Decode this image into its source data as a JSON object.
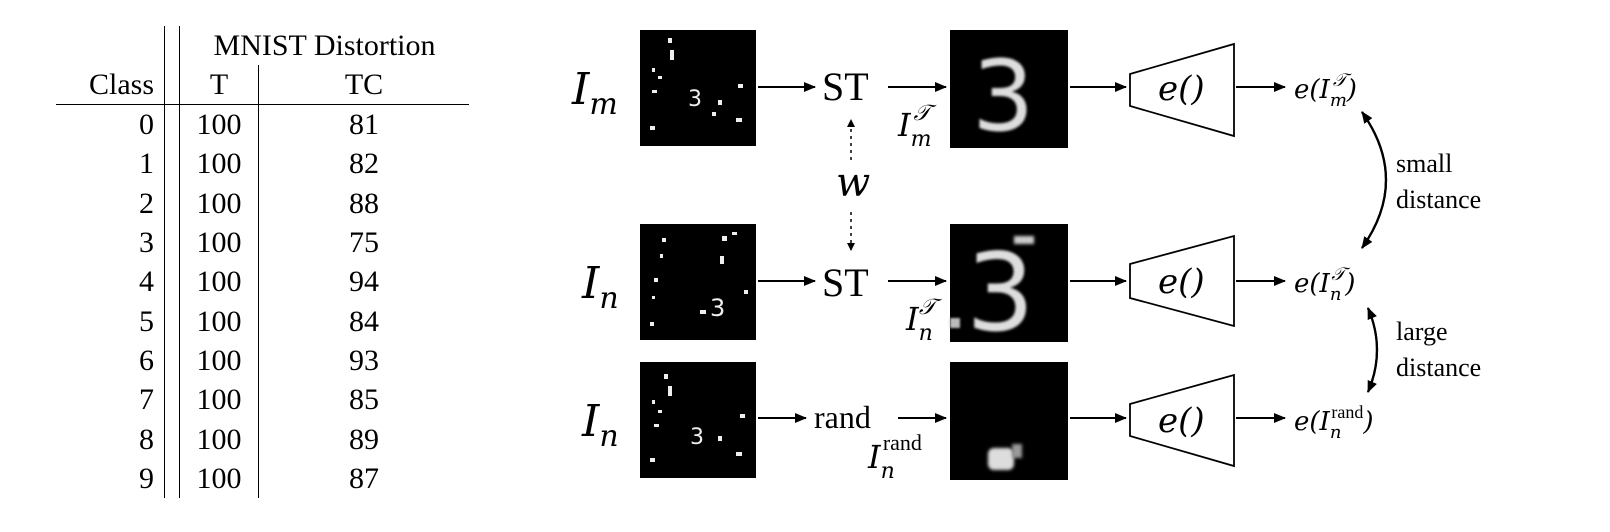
{
  "table": {
    "header_group": "MNIST Distortion",
    "columns": [
      "Class",
      "T",
      "TC"
    ],
    "rows": [
      [
        "0",
        "100",
        "81"
      ],
      [
        "1",
        "100",
        "82"
      ],
      [
        "2",
        "100",
        "88"
      ],
      [
        "3",
        "100",
        "75"
      ],
      [
        "4",
        "100",
        "94"
      ],
      [
        "5",
        "100",
        "84"
      ],
      [
        "6",
        "100",
        "93"
      ],
      [
        "7",
        "100",
        "85"
      ],
      [
        "8",
        "100",
        "89"
      ],
      [
        "9",
        "100",
        "87"
      ]
    ]
  },
  "diagram": {
    "inputs": [
      "I_m",
      "I_n",
      "I_n"
    ],
    "ops": [
      "ST",
      "ST",
      "rand"
    ],
    "weight_label": "w",
    "outputs_inter": [
      "I_m^T",
      "I_n^T",
      "I_n^rand"
    ],
    "encoder_label": "e()",
    "embeddings": [
      "e(I_m^T)",
      "e(I_n^T)",
      "e(I_n^rand)"
    ],
    "small_label_1": "small",
    "small_label_2": "distance",
    "large_label_1": "large",
    "large_label_2": "distance"
  }
}
